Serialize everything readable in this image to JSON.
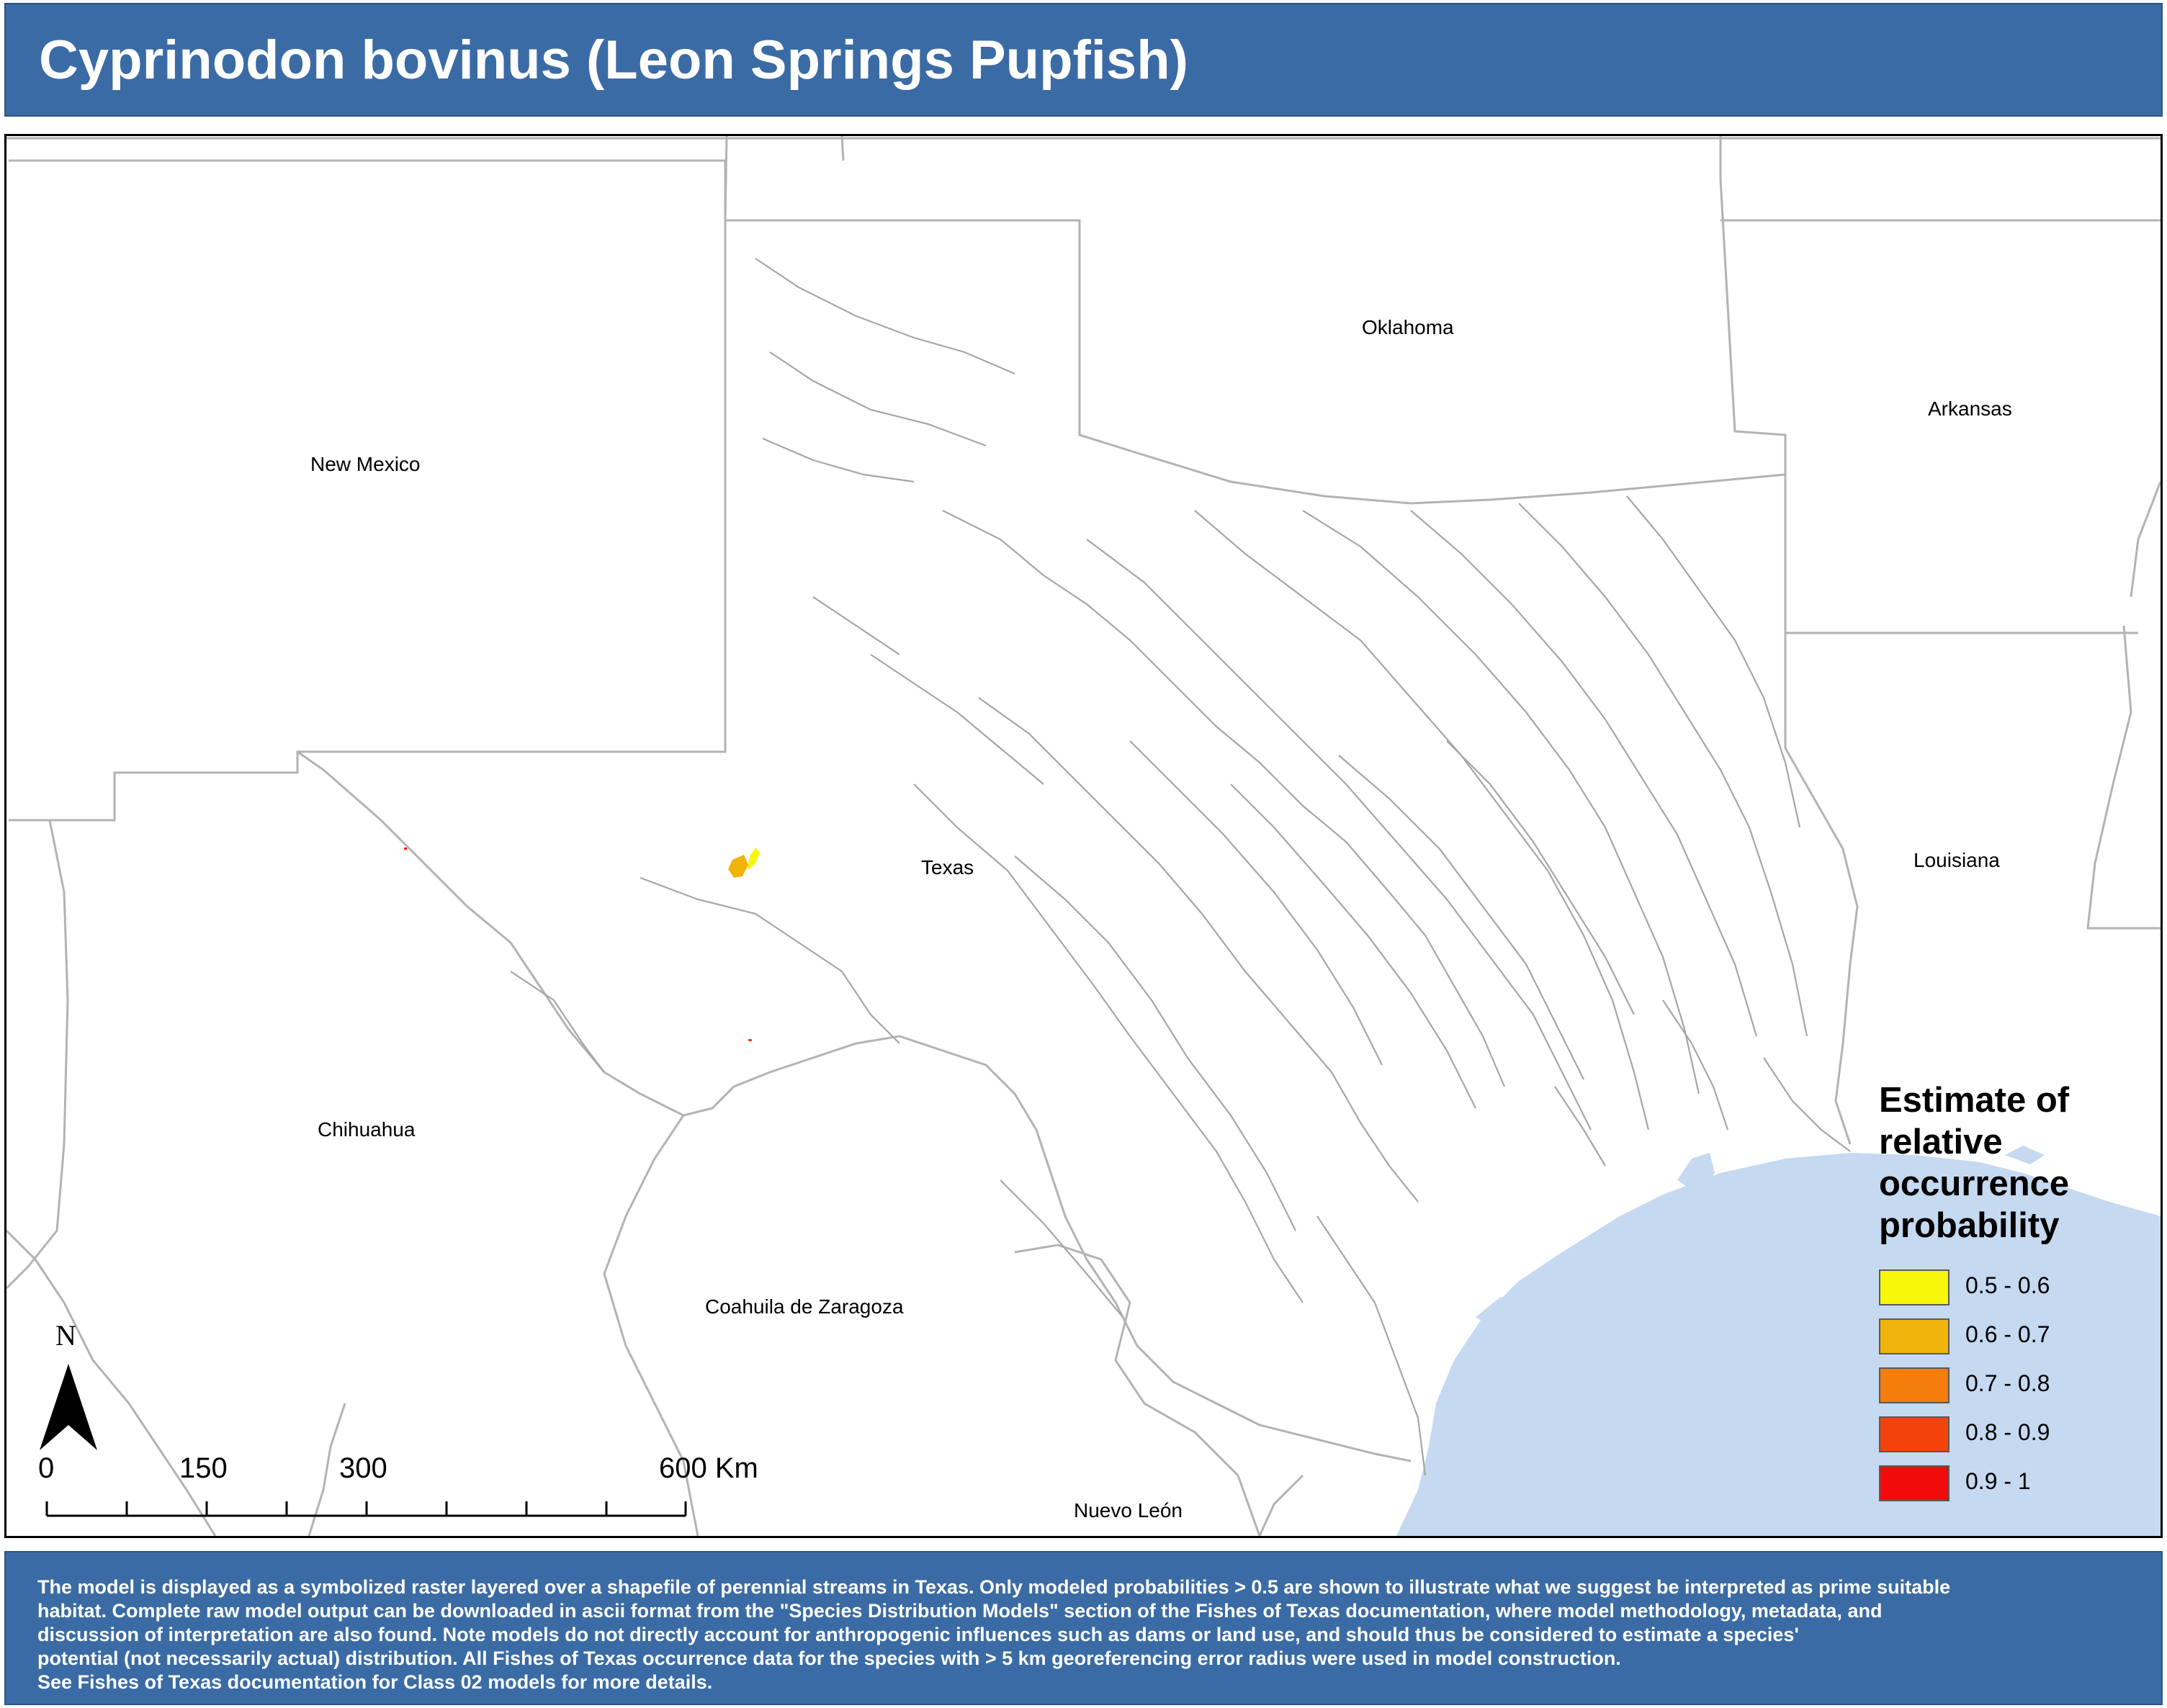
{
  "title": "Cyprinodon bovinus (Leon Springs Pupfish)",
  "regions": {
    "new_mexico": "New Mexico",
    "oklahoma": "Oklahoma",
    "arkansas": "Arkansas",
    "texas": "Texas",
    "louisiana": "Louisiana",
    "chihuahua": "Chihuahua",
    "coahuila": "Coahuila de Zaragoza",
    "nuevo_leon": "Nuevo León"
  },
  "legend": {
    "title": "Estimate of relative occurrence probability",
    "items": [
      {
        "label": "0.5 - 0.6",
        "color": "#f7f70a"
      },
      {
        "label": "0.6 - 0.7",
        "color": "#f1b40c"
      },
      {
        "label": "0.7 - 0.8",
        "color": "#f47d0b"
      },
      {
        "label": "0.8 - 0.9",
        "color": "#f4420b"
      },
      {
        "label": "0.9 - 1",
        "color": "#f30a0a"
      }
    ]
  },
  "north_arrow": {
    "label": "N"
  },
  "scale_bar": {
    "labels": [
      "0",
      "150",
      "300",
      "600 Km"
    ]
  },
  "colors": {
    "header_bg": "#3a6ba4",
    "water": "#c5d9f0",
    "streams": "#a6a6a6",
    "borders": "#b3b3b3"
  },
  "footer": {
    "lines": [
      "The model is displayed as a symbolized raster layered over a shapefile of perennial streams in Texas. Only modeled probabilities > 0.5 are shown to illustrate what we suggest be interpreted as prime suitable",
      "habitat. Complete raw model output can be downloaded in ascii format from the \"Species Distribution Models\" section of the Fishes of Texas documentation, where model methodology, metadata, and",
      " discussion of interpretation are also found. Note models do not directly account for anthropogenic influences such as dams or land use, and should thus be considered to estimate a species'",
      "potential (not necessarily actual) distribution. All Fishes of Texas occurrence data for the species with > 5 km georeferencing error radius were used in model construction.",
      "See Fishes of Texas documentation for Class 02 models for more details."
    ]
  }
}
